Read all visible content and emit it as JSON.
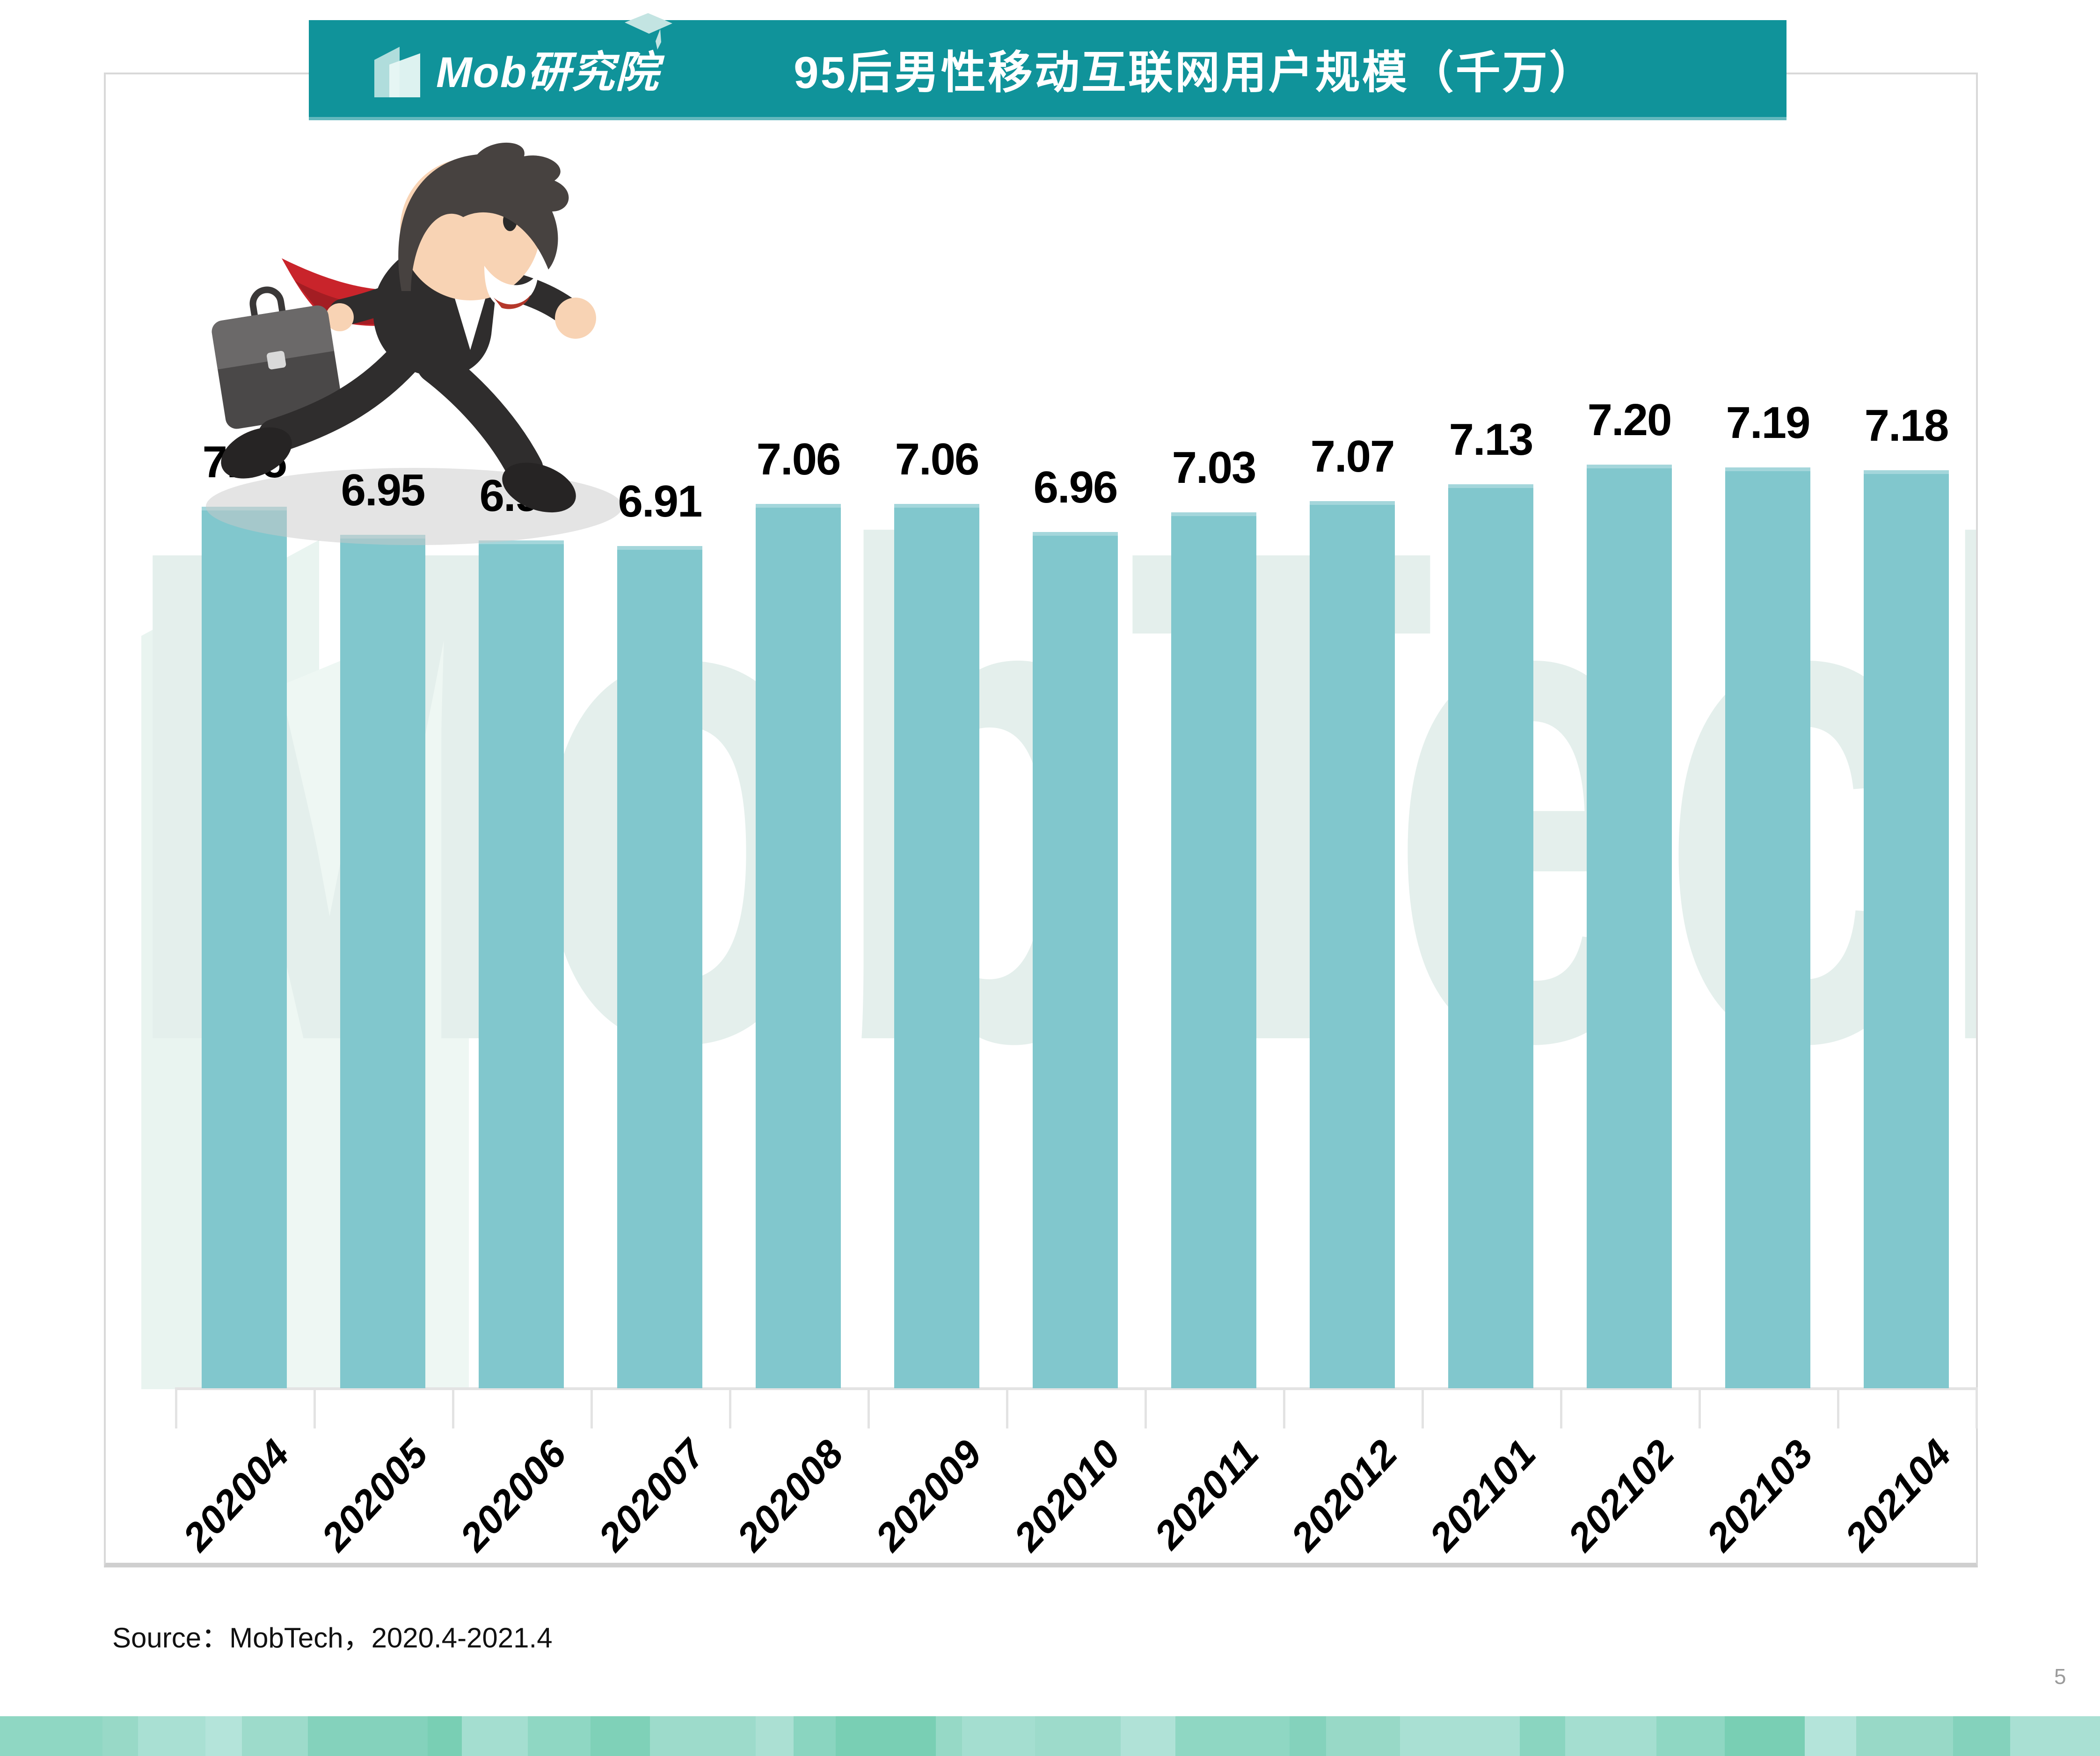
{
  "header": {
    "logo_text": "Mob研究院",
    "title": "95后男性移动互联网用户规模（千万）",
    "banner_color": "#10939a"
  },
  "chart_data": {
    "type": "bar",
    "title": "95后男性移动互联网用户规模（千万）",
    "unit": "千万",
    "categories": [
      "202004",
      "202005",
      "202006",
      "202007",
      "202008",
      "202009",
      "202010",
      "202011",
      "202012",
      "202101",
      "202102",
      "202103",
      "202104"
    ],
    "values": [
      7.05,
      6.95,
      6.93,
      6.91,
      7.06,
      7.06,
      6.96,
      7.03,
      7.07,
      7.13,
      7.2,
      7.19,
      7.18
    ],
    "value_labels": [
      "7.05",
      "6.95",
      "6.93",
      "6.91",
      "7.06",
      "7.06",
      "6.96",
      "7.03",
      "7.07",
      "7.13",
      "7.20",
      "7.19",
      "7.18"
    ],
    "xlabel": "",
    "ylabel": "",
    "ylim_estimate": [
      3.9,
      7.4
    ],
    "grid": false,
    "legend": "none",
    "bar_color": "#81c7cd",
    "value_label_color": "#000000",
    "axis_color": "#e3e3e3"
  },
  "watermark": {
    "text": "MobTech袤博",
    "color": "#e4efec"
  },
  "illustration": {
    "name": "running-businessman",
    "colors": {
      "suit": "#2f2d2d",
      "tie": "#c9242b",
      "tie_dark": "#a31d23",
      "skin": "#f8d3b4",
      "hair": "#474240",
      "briefcase": "#4a4848",
      "briefcase_top": "#6b6969",
      "boot": "#262424"
    }
  },
  "source": {
    "text": "Source：MobTech，2020.4-2021.4"
  },
  "page": {
    "number": "5"
  },
  "footer": {
    "stripe_colors": [
      "#8fd7c3",
      "#98d9c7",
      "#a9e0d3",
      "#b4e4da",
      "#9ddbcb",
      "#84d2bc",
      "#79cfb4",
      "#a4ded0",
      "#8fd7c3",
      "#7fd1b8",
      "#9ddbcb",
      "#abe0d3",
      "#8ad5c0",
      "#79cfb4",
      "#96d9c6",
      "#a4ded0",
      "#9ddbcb",
      "#b0e2d7",
      "#8fd7c3",
      "#84d2bc",
      "#98d9c7",
      "#a9e0d3",
      "#8ad5c0",
      "#a4ded0",
      "#8fd7c3",
      "#79cfb4",
      "#b4e4da",
      "#98d9c7",
      "#84d2bc",
      "#a9e0d3"
    ],
    "stripe_widths": [
      180,
      62,
      118,
      64,
      116,
      210,
      60,
      116,
      110,
      104,
      186,
      66,
      74,
      176,
      46,
      128,
      150,
      96,
      200,
      64,
      130,
      210,
      80,
      160,
      120,
      140,
      90,
      170,
      100,
      158
    ]
  }
}
